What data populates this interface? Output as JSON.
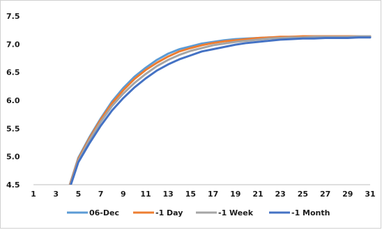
{
  "chart_data": {
    "type": "line",
    "title": "",
    "xlabel": "",
    "ylabel": "",
    "x": [
      1,
      2,
      3,
      4,
      5,
      6,
      7,
      8,
      9,
      10,
      11,
      12,
      13,
      14,
      15,
      16,
      17,
      18,
      19,
      20,
      21,
      22,
      23,
      24,
      25,
      26,
      27,
      28,
      29,
      30,
      31
    ],
    "xticks": [
      "1",
      "3",
      "5",
      "7",
      "9",
      "11",
      "13",
      "15",
      "17",
      "19",
      "21",
      "23",
      "25",
      "27",
      "29",
      "31"
    ],
    "ylim": [
      4.5,
      7.5
    ],
    "yticks": [
      "4.5",
      "5.0",
      "5.5",
      "6.0",
      "6.5",
      "7.0",
      "7.5"
    ],
    "grid": false,
    "legend_position": "bottom",
    "series": [
      {
        "name": "06-Dec",
        "color": "#5b9bd5",
        "values": [
          null,
          null,
          null,
          4.35,
          4.98,
          5.35,
          5.68,
          5.98,
          6.22,
          6.42,
          6.58,
          6.72,
          6.83,
          6.91,
          6.96,
          7.01,
          7.04,
          7.07,
          7.09,
          7.1,
          7.11,
          7.12,
          7.12,
          7.13,
          7.13,
          7.13,
          7.13,
          7.13,
          7.13,
          7.13,
          7.13
        ]
      },
      {
        "name": "-1 Day",
        "color": "#ed7d31",
        "values": [
          null,
          null,
          null,
          4.34,
          4.96,
          5.33,
          5.66,
          5.95,
          6.18,
          6.38,
          6.54,
          6.67,
          6.78,
          6.87,
          6.93,
          6.98,
          7.02,
          7.05,
          7.07,
          7.09,
          7.11,
          7.12,
          7.13,
          7.13,
          7.14,
          7.14,
          7.14,
          7.14,
          7.14,
          7.14,
          7.14
        ]
      },
      {
        "name": "-1 Week",
        "color": "#a5a5a5",
        "values": [
          null,
          null,
          null,
          4.32,
          4.93,
          5.3,
          5.62,
          5.9,
          6.12,
          6.31,
          6.47,
          6.61,
          6.72,
          6.81,
          6.88,
          6.93,
          6.98,
          7.01,
          7.04,
          7.06,
          7.08,
          7.1,
          7.11,
          7.12,
          7.12,
          7.13,
          7.13,
          7.13,
          7.13,
          7.14,
          7.14
        ]
      },
      {
        "name": "-1 Month",
        "color": "#4472c4",
        "values": [
          null,
          null,
          null,
          4.3,
          4.9,
          5.24,
          5.55,
          5.82,
          6.04,
          6.23,
          6.39,
          6.53,
          6.64,
          6.73,
          6.8,
          6.87,
          6.91,
          6.95,
          6.99,
          7.02,
          7.04,
          7.06,
          7.08,
          7.09,
          7.1,
          7.1,
          7.11,
          7.11,
          7.11,
          7.12,
          7.12
        ]
      }
    ]
  }
}
